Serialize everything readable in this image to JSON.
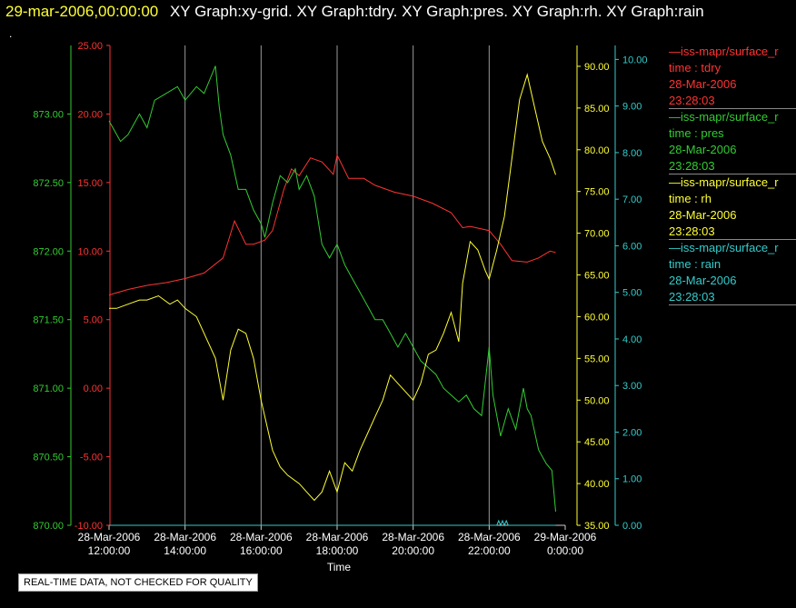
{
  "header": {
    "date": "29-mar-2006,00:00:00",
    "title": "XY Graph:xy-grid.  XY Graph:tdry.  XY Graph:pres.  XY Graph:rh.  XY Graph:rain"
  },
  "header_dot": ".",
  "legend": [
    {
      "name": "—iss-mapr/surface_r",
      "field": "time : tdry",
      "date": "28-Mar-2006",
      "time": "23:28:03",
      "color": "#ff3333"
    },
    {
      "name": "—iss-mapr/surface_r",
      "field": "time : pres",
      "date": "28-Mar-2006",
      "time": "23:28:03",
      "color": "#33cc33"
    },
    {
      "name": "—iss-mapr/surface_r",
      "field": "time : rh",
      "date": "28-Mar-2006",
      "time": "23:28:03",
      "color": "#ffff33"
    },
    {
      "name": "—iss-mapr/surface_r",
      "field": "time : rain",
      "date": "28-Mar-2006",
      "time": "23:28:03",
      "color": "#33cccc"
    }
  ],
  "disclaimer": "REAL-TIME DATA, NOT CHECKED FOR QUALITY",
  "chart_data": {
    "type": "line",
    "xlabel": "Time",
    "x_ticks": [
      {
        "date": "28-Mar-2006",
        "time": "12:00:00"
      },
      {
        "date": "28-Mar-2006",
        "time": "14:00:00"
      },
      {
        "date": "28-Mar-2006",
        "time": "16:00:00"
      },
      {
        "date": "28-Mar-2006",
        "time": "18:00:00"
      },
      {
        "date": "28-Mar-2006",
        "time": "20:00:00"
      },
      {
        "date": "28-Mar-2006",
        "time": "22:00:00"
      },
      {
        "date": "29-Mar-2006",
        "time": "0:00:00"
      }
    ],
    "xlim_hours": [
      12,
      24
    ],
    "grid": true,
    "axes": {
      "pres": {
        "color": "#33cc33",
        "ylim": [
          870.0,
          873.5
        ],
        "ticks": [
          "870.00",
          "870.50",
          "871.00",
          "871.50",
          "872.00",
          "872.50",
          "873.00"
        ]
      },
      "tdry": {
        "color": "#ff3333",
        "ylim": [
          -10,
          25
        ],
        "ticks": [
          "-10.00",
          "-5.00",
          "0.00",
          "5.00",
          "10.00",
          "15.00",
          "20.00",
          "25.00"
        ]
      },
      "rh": {
        "color": "#ffff33",
        "ylim": [
          35,
          92.5
        ],
        "ticks": [
          "35.00",
          "40.00",
          "45.00",
          "50.00",
          "55.00",
          "60.00",
          "65.00",
          "70.00",
          "75.00",
          "80.00",
          "85.00",
          "90.00"
        ]
      },
      "rain": {
        "color": "#33cccc",
        "ylim": [
          0,
          10.3
        ],
        "ticks": [
          "0.00",
          "1.00",
          "2.00",
          "3.00",
          "4.00",
          "5.00",
          "6.00",
          "7.00",
          "8.00",
          "9.00",
          "10.00"
        ]
      }
    },
    "series": [
      {
        "key": "tdry",
        "hours": [
          12.0,
          12.5,
          13.0,
          13.5,
          14.0,
          14.5,
          15.0,
          15.3,
          15.6,
          15.8,
          16.1,
          16.3,
          16.6,
          16.8,
          17.0,
          17.3,
          17.6,
          17.9,
          18.0,
          18.3,
          18.7,
          19.0,
          19.5,
          20.0,
          20.5,
          21.0,
          21.3,
          21.5,
          22.0,
          22.3,
          22.6,
          23.0,
          23.3,
          23.6,
          23.75
        ],
        "values": [
          6.8,
          7.2,
          7.5,
          7.7,
          8.0,
          8.4,
          9.5,
          12.2,
          10.5,
          10.5,
          10.8,
          11.5,
          14.5,
          16.0,
          15.5,
          16.8,
          16.5,
          15.6,
          17.0,
          15.3,
          15.3,
          14.8,
          14.3,
          14.0,
          13.5,
          12.8,
          11.7,
          11.8,
          11.5,
          10.5,
          9.3,
          9.2,
          9.5,
          10.0,
          9.9
        ]
      },
      {
        "key": "pres",
        "hours": [
          12.0,
          12.1,
          12.3,
          12.5,
          12.8,
          13.0,
          13.2,
          13.5,
          13.8,
          14.0,
          14.3,
          14.5,
          14.8,
          14.9,
          15.0,
          15.2,
          15.4,
          15.6,
          15.8,
          16.0,
          16.1,
          16.3,
          16.5,
          16.7,
          16.9,
          17.0,
          17.2,
          17.4,
          17.6,
          17.8,
          18.0,
          18.2,
          18.4,
          18.6,
          18.8,
          19.0,
          19.2,
          19.4,
          19.6,
          19.8,
          20.0,
          20.2,
          20.4,
          20.6,
          20.8,
          21.0,
          21.2,
          21.4,
          21.6,
          21.8,
          22.0,
          22.1,
          22.3,
          22.5,
          22.7,
          22.9,
          23.0,
          23.1,
          23.3,
          23.5,
          23.65,
          23.75
        ],
        "values": [
          872.95,
          872.9,
          872.8,
          872.85,
          873.0,
          872.9,
          873.1,
          873.15,
          873.2,
          873.1,
          873.2,
          873.15,
          873.35,
          873.05,
          872.85,
          872.7,
          872.45,
          872.45,
          872.3,
          872.2,
          872.1,
          872.35,
          872.55,
          872.5,
          872.6,
          872.45,
          872.55,
          872.4,
          872.05,
          871.95,
          872.05,
          871.9,
          871.8,
          871.7,
          871.6,
          871.5,
          871.5,
          871.4,
          871.3,
          871.4,
          871.3,
          871.2,
          871.15,
          871.1,
          871.0,
          870.95,
          870.9,
          870.95,
          870.85,
          870.8,
          871.3,
          870.95,
          870.65,
          870.85,
          870.7,
          871.0,
          870.85,
          870.8,
          870.55,
          870.45,
          870.4,
          870.1
        ]
      },
      {
        "key": "rh",
        "hours": [
          12.0,
          12.2,
          12.5,
          12.8,
          13.0,
          13.3,
          13.6,
          13.8,
          14.0,
          14.3,
          14.5,
          14.8,
          15.0,
          15.2,
          15.4,
          15.6,
          15.8,
          16.0,
          16.1,
          16.3,
          16.5,
          16.7,
          17.0,
          17.2,
          17.4,
          17.6,
          17.8,
          18.0,
          18.2,
          18.4,
          18.6,
          18.8,
          19.0,
          19.2,
          19.4,
          19.6,
          19.8,
          20.0,
          20.2,
          20.4,
          20.6,
          20.8,
          21.0,
          21.2,
          21.3,
          21.5,
          21.7,
          21.9,
          22.0,
          22.2,
          22.4,
          22.6,
          22.8,
          23.0,
          23.2,
          23.4,
          23.6,
          23.75
        ],
        "values": [
          61.0,
          61.0,
          61.5,
          62.0,
          62.0,
          62.5,
          61.5,
          62.0,
          61.0,
          60.0,
          58.0,
          55.0,
          50.0,
          56.0,
          58.5,
          58.0,
          55.0,
          50.0,
          48.0,
          44.0,
          42.0,
          41.0,
          40.0,
          39.0,
          38.0,
          39.0,
          41.5,
          39.0,
          42.5,
          41.5,
          44.0,
          46.0,
          48.0,
          50.0,
          53.0,
          52.0,
          51.0,
          50.0,
          52.0,
          55.5,
          56.0,
          58.0,
          60.5,
          57.0,
          64.0,
          69.0,
          68.0,
          65.5,
          64.5,
          68.0,
          72.0,
          79.0,
          86.0,
          89.0,
          85.0,
          81.0,
          79.0,
          77.0
        ]
      },
      {
        "key": "rain",
        "hours": [
          12.0,
          14.0,
          16.0,
          18.0,
          20.0,
          22.0,
          22.2,
          22.25,
          22.3,
          22.35,
          22.4,
          22.45,
          22.5,
          22.55,
          22.6,
          23.0,
          23.75
        ],
        "values": [
          0.0,
          0.0,
          0.0,
          0.0,
          0.0,
          0.0,
          0.0,
          0.1,
          0.0,
          0.1,
          0.0,
          0.1,
          0.0,
          0.0,
          0.0,
          0.0,
          0.0
        ]
      }
    ]
  }
}
